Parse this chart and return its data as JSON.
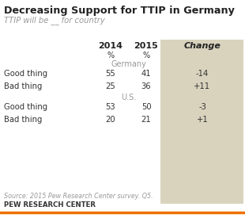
{
  "title": "Decreasing Support for TTIP in Germany",
  "subtitle": "TTIP will be __ for country",
  "col_headers": [
    "2014",
    "2015",
    "Change"
  ],
  "sections": [
    {
      "section_label": "Germany",
      "rows": [
        {
          "label": "Good thing",
          "val2014": "55",
          "val2015": "41",
          "change": "-14"
        },
        {
          "label": "Bad thing",
          "val2014": "25",
          "val2015": "36",
          "change": "+11"
        }
      ]
    },
    {
      "section_label": "U.S.",
      "rows": [
        {
          "label": "Good thing",
          "val2014": "53",
          "val2015": "50",
          "change": "-3"
        },
        {
          "label": "Bad thing",
          "val2014": "20",
          "val2015": "21",
          "change": "+1"
        }
      ]
    }
  ],
  "source_text": "Source: 2015 Pew Research Center survey. Q5.",
  "footer_text": "PEW RESEARCH CENTER",
  "bg_color": "#ffffff",
  "title_color": "#222222",
  "subtitle_color": "#999999",
  "header_color": "#222222",
  "cell_color": "#333333",
  "change_bg_color": "#d9d3be",
  "change_text_color": "#333333",
  "section_label_color": "#999999",
  "footer_color": "#333333",
  "source_color": "#999999",
  "bottom_line_color": "#f07000"
}
